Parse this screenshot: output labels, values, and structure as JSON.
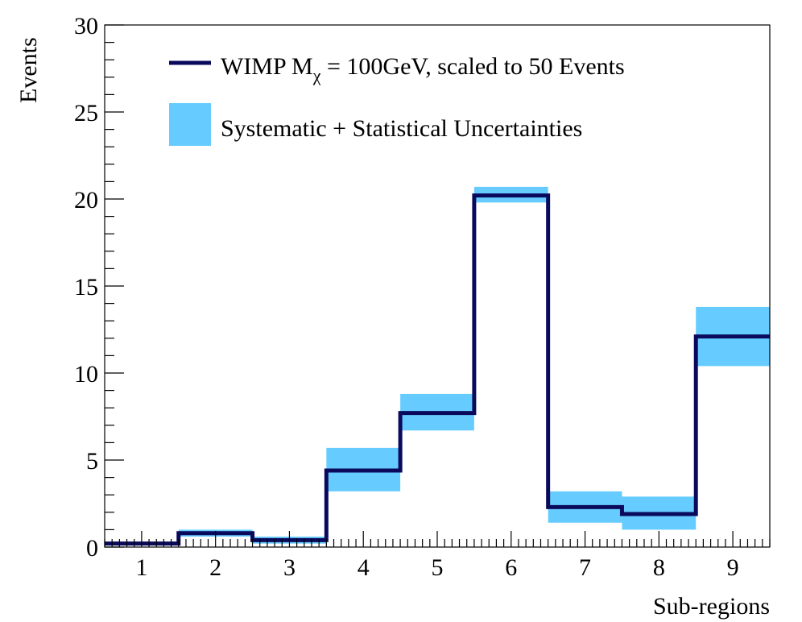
{
  "chart_data": {
    "type": "step-histogram",
    "xlabel": "Sub-regions",
    "ylabel": "Events",
    "xlim": [
      0.5,
      9.5
    ],
    "ylim": [
      0,
      30
    ],
    "x_ticks": [
      "1",
      "2",
      "3",
      "4",
      "5",
      "6",
      "7",
      "8",
      "9"
    ],
    "y_ticks": [
      "0",
      "5",
      "10",
      "15",
      "20",
      "25",
      "30"
    ],
    "categories": [
      1,
      2,
      3,
      4,
      5,
      6,
      7,
      8,
      9
    ],
    "grid": false,
    "legend_position": "top-left",
    "series": [
      {
        "name_main": "WIMP M",
        "name_subscript": "χ",
        "name_rest": " = 100GeV, scaled to 50 Events",
        "values": [
          0.2,
          0.8,
          0.4,
          4.4,
          7.7,
          20.2,
          2.3,
          1.9,
          12.1
        ],
        "color": "#0a0a5c"
      },
      {
        "name": "Systematic + Statistical Uncertainties",
        "lower": [
          0.1,
          0.6,
          0.2,
          3.2,
          6.7,
          19.8,
          1.4,
          1.0,
          10.4
        ],
        "upper": [
          0.3,
          1.0,
          0.6,
          5.7,
          8.8,
          20.7,
          3.2,
          2.9,
          13.8
        ],
        "color": "#66ccff"
      }
    ]
  }
}
